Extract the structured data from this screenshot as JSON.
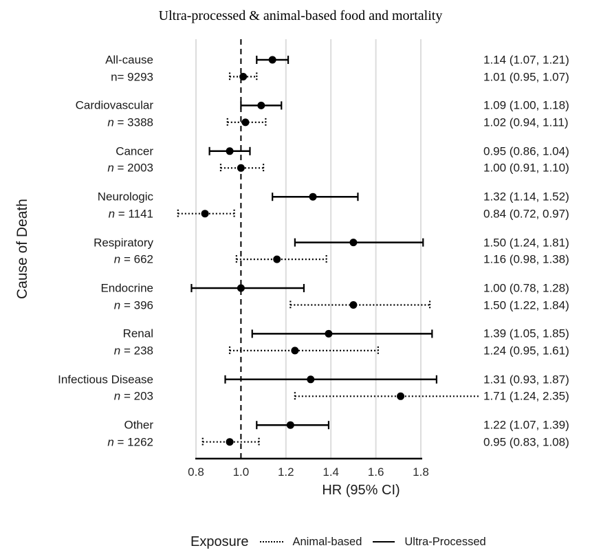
{
  "chart_data": {
    "type": "forest",
    "title": "Ultra-processed & animal-based food and mortality",
    "xlabel": "HR (95% CI)",
    "ylabel": "Cause of Death",
    "xlim": [
      0.8,
      1.8
    ],
    "x_ticks": [
      "0.8",
      "1.0",
      "1.2",
      "1.4",
      "1.6",
      "1.8"
    ],
    "ref_line": 1.0,
    "grid": true,
    "colors": {
      "marker": "#000000",
      "grid": "#dcdcdc",
      "text": "#1a1a1a"
    },
    "groups": [
      {
        "label": "All-cause",
        "n_label": "n= 9293",
        "ultra": {
          "hr": 1.14,
          "lo": 1.07,
          "hi": 1.21,
          "text": "1.14 (1.07, 1.21)"
        },
        "animal": {
          "hr": 1.01,
          "lo": 0.95,
          "hi": 1.07,
          "text": "1.01 (0.95, 1.07)"
        }
      },
      {
        "label": "Cardiovascular",
        "n_label": "n = 3388",
        "ultra": {
          "hr": 1.09,
          "lo": 1.0,
          "hi": 1.18,
          "text": "1.09 (1.00, 1.18)"
        },
        "animal": {
          "hr": 1.02,
          "lo": 0.94,
          "hi": 1.11,
          "text": "1.02 (0.94, 1.11)"
        }
      },
      {
        "label": "Cancer",
        "n_label": "n = 2003",
        "ultra": {
          "hr": 0.95,
          "lo": 0.86,
          "hi": 1.04,
          "text": "0.95 (0.86, 1.04)"
        },
        "animal": {
          "hr": 1.0,
          "lo": 0.91,
          "hi": 1.1,
          "text": "1.00 (0.91, 1.10)"
        }
      },
      {
        "label": "Neurologic",
        "n_label": "n = 1141",
        "ultra": {
          "hr": 1.32,
          "lo": 1.14,
          "hi": 1.52,
          "text": "1.32 (1.14, 1.52)"
        },
        "animal": {
          "hr": 0.84,
          "lo": 0.72,
          "hi": 0.97,
          "text": "0.84 (0.72, 0.97)"
        }
      },
      {
        "label": "Respiratory",
        "n_label": "n = 662",
        "ultra": {
          "hr": 1.5,
          "lo": 1.24,
          "hi": 1.81,
          "text": "1.50 (1.24, 1.81)"
        },
        "animal": {
          "hr": 1.16,
          "lo": 0.98,
          "hi": 1.38,
          "text": "1.16 (0.98, 1.38)"
        }
      },
      {
        "label": "Endocrine",
        "n_label": "n = 396",
        "ultra": {
          "hr": 1.0,
          "lo": 0.78,
          "hi": 1.28,
          "text": "1.00 (0.78, 1.28)"
        },
        "animal": {
          "hr": 1.5,
          "lo": 1.22,
          "hi": 1.84,
          "text": "1.50 (1.22, 1.84)"
        }
      },
      {
        "label": "Renal",
        "n_label": "n = 238",
        "ultra": {
          "hr": 1.39,
          "lo": 1.05,
          "hi": 1.85,
          "text": "1.39 (1.05, 1.85)"
        },
        "animal": {
          "hr": 1.24,
          "lo": 0.95,
          "hi": 1.61,
          "text": "1.24 (0.95, 1.61)"
        }
      },
      {
        "label": "Infectious Disease",
        "n_label": "n = 203",
        "ultra": {
          "hr": 1.31,
          "lo": 0.93,
          "hi": 1.87,
          "text": "1.31 (0.93, 1.87)"
        },
        "animal": {
          "hr": 1.71,
          "lo": 1.24,
          "hi": 2.35,
          "text": "1.71 (1.24, 2.35)"
        }
      },
      {
        "label": "Other",
        "n_label": "n = 1262",
        "ultra": {
          "hr": 1.22,
          "lo": 1.07,
          "hi": 1.39,
          "text": "1.22 (1.07, 1.39)"
        },
        "animal": {
          "hr": 0.95,
          "lo": 0.83,
          "hi": 1.08,
          "text": "0.95 (0.83, 1.08)"
        }
      }
    ],
    "legend": {
      "title": "Exposure",
      "items": [
        {
          "label": "Animal-based",
          "style": "dotted"
        },
        {
          "label": "Ultra-Processed",
          "style": "solid"
        }
      ]
    }
  }
}
